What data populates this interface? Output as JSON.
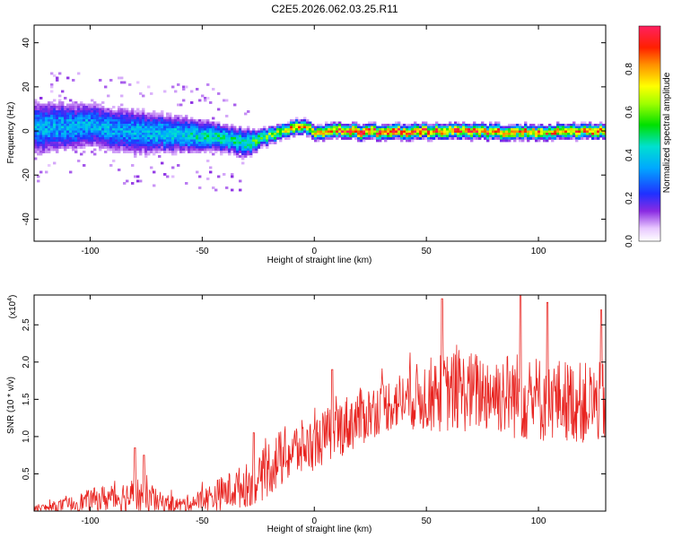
{
  "title": "C2E5.2026.062.03.25.R11",
  "chart_data": [
    {
      "type": "heatmap",
      "name": "spectrogram",
      "xlabel": "Height of straight line (km)",
      "ylabel": "Frequency (Hz)",
      "xlim": [
        -125,
        130
      ],
      "ylim": [
        -50,
        48
      ],
      "xticks": [
        -100,
        -50,
        0,
        50,
        100
      ],
      "yticks": [
        40,
        20,
        0,
        -20,
        -40
      ],
      "ytick_labels": [
        "40",
        "20",
        "0",
        "-20",
        "-40"
      ],
      "colorbar": {
        "label": "Normalized spectral amplitude",
        "range": [
          0.0,
          1.0
        ],
        "ticks": [
          0.0,
          0.2,
          0.4,
          0.6,
          0.8
        ],
        "tick_labels": [
          "0.0",
          "0.2",
          "0.4",
          "0.6",
          "0.8"
        ]
      },
      "ridge": {
        "x": [
          -125,
          -100,
          -80,
          -60,
          -40,
          -30,
          -25,
          -15,
          -10,
          -5,
          0,
          10,
          20,
          40,
          60,
          80,
          100,
          130
        ],
        "freq": [
          2,
          3,
          0,
          -1,
          -3,
          -5,
          -3,
          0,
          2,
          3,
          -1,
          1,
          0,
          0,
          0.5,
          0,
          0,
          0.5
        ],
        "amplitude": [
          0.35,
          0.35,
          0.35,
          0.4,
          0.45,
          0.45,
          0.55,
          0.65,
          0.8,
          0.75,
          0.7,
          0.85,
          0.9,
          0.9,
          0.9,
          0.85,
          0.8,
          0.8
        ],
        "spread_hz": [
          12,
          10,
          10,
          8,
          6,
          6,
          4,
          3,
          3,
          3,
          3,
          3,
          3,
          3,
          3,
          3,
          3,
          3
        ]
      }
    },
    {
      "type": "line",
      "name": "snr",
      "xlabel": "Height of straight line (km)",
      "ylabel": "SNR (10 * v/v)",
      "y_multiplier": "(x10",
      "y_exponent": "4",
      "y_multiplier_close": ")",
      "xlim": [
        -125,
        130
      ],
      "ylim": [
        0,
        2.9
      ],
      "xticks": [
        -100,
        -50,
        0,
        50,
        100
      ],
      "yticks": [
        0.5,
        1.0,
        1.5,
        2.0,
        2.5
      ],
      "ytick_labels": [
        "0.5",
        "1.0",
        "1.5",
        "2.0",
        "2.5"
      ],
      "color": "#e8231f",
      "series": [
        {
          "name": "SNR",
          "x": [
            -125,
            -110,
            -100,
            -90,
            -80,
            -75,
            -70,
            -60,
            -50,
            -40,
            -30,
            -25,
            -20,
            -10,
            0,
            10,
            20,
            30,
            40,
            50,
            60,
            70,
            80,
            90,
            100,
            110,
            120,
            130
          ],
          "baseline": [
            0.02,
            0.08,
            0.15,
            0.18,
            0.2,
            0.2,
            0.12,
            0.08,
            0.15,
            0.25,
            0.35,
            0.4,
            0.6,
            0.8,
            0.9,
            1.1,
            1.25,
            1.4,
            1.5,
            1.55,
            1.6,
            1.6,
            1.6,
            1.55,
            1.5,
            1.5,
            1.45,
            1.45
          ],
          "amplitude": [
            0.05,
            0.1,
            0.15,
            0.2,
            0.25,
            0.3,
            0.15,
            0.1,
            0.15,
            0.25,
            0.3,
            0.3,
            0.4,
            0.4,
            0.35,
            0.4,
            0.4,
            0.35,
            0.4,
            0.5,
            0.55,
            0.55,
            0.55,
            0.6,
            0.6,
            0.55,
            0.55,
            0.55
          ],
          "peaks": [
            [
              -80,
              0.85
            ],
            [
              -76,
              0.75
            ],
            [
              -27,
              1.05
            ],
            [
              8,
              1.9
            ],
            [
              57,
              2.85
            ],
            [
              92,
              2.9
            ],
            [
              104,
              2.8
            ],
            [
              128,
              2.7
            ]
          ]
        }
      ]
    }
  ]
}
